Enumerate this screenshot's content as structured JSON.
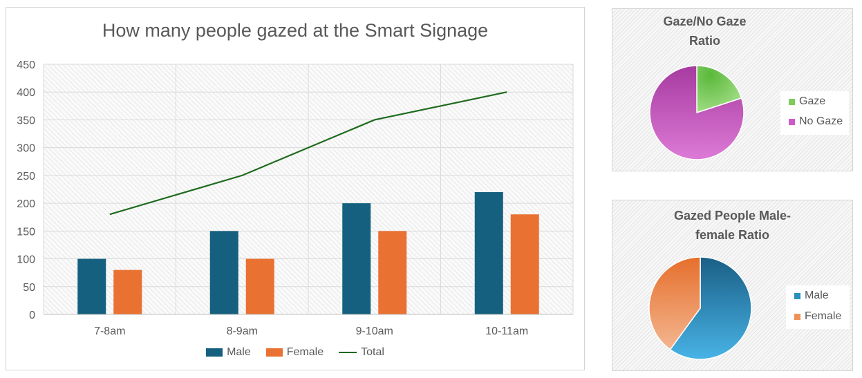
{
  "chart_data": [
    {
      "type": "bar",
      "title": "How many people gazed at the Smart Signage",
      "categories": [
        "7-8am",
        "8-9am",
        "9-10am",
        "10-11am"
      ],
      "ylim": [
        0,
        450
      ],
      "yticks": [
        "0",
        "50",
        "100",
        "150",
        "200",
        "250",
        "300",
        "350",
        "400",
        "450"
      ],
      "grid": true,
      "legend_position": "bottom",
      "series": [
        {
          "name": "Male",
          "kind": "bar",
          "color": "#15607f",
          "values": [
            100,
            150,
            200,
            220
          ]
        },
        {
          "name": "Female",
          "kind": "bar",
          "color": "#e97132",
          "values": [
            80,
            100,
            150,
            180
          ]
        },
        {
          "name": "Total",
          "kind": "line",
          "color": "#1e6b1e",
          "values": [
            180,
            250,
            350,
            400
          ]
        }
      ]
    },
    {
      "type": "pie",
      "title": "Gaze/No Gaze Ratio",
      "legend_position": "right",
      "slices": [
        {
          "label": "Gaze",
          "value": 20,
          "color": "#7ecc5a"
        },
        {
          "label": "No Gaze",
          "value": 80,
          "color": "#cc5ac8"
        }
      ]
    },
    {
      "type": "pie",
      "title": "Gazed People Male-female Ratio",
      "legend_position": "right",
      "slices": [
        {
          "label": "Male",
          "value": 60,
          "color": "#2a8fbf"
        },
        {
          "label": "Female",
          "value": 40,
          "color": "#ee9258"
        }
      ]
    }
  ]
}
